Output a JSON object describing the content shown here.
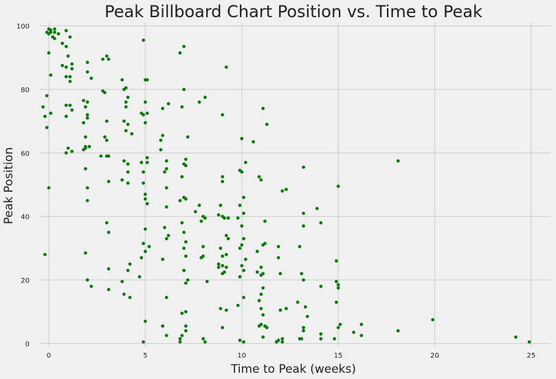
{
  "chart_data": {
    "type": "scatter",
    "title": "Peak Billboard Chart Position vs. Time to Peak",
    "xlabel": "Time to Peak (weeks)",
    "ylabel": "Peak Position",
    "xlim": [
      -0.5,
      26
    ],
    "ylim": [
      -1,
      101
    ],
    "xticks": [
      0,
      5,
      10,
      15,
      20,
      25
    ],
    "yticks": [
      0,
      20,
      40,
      60,
      80,
      100
    ],
    "xtick_labels": [
      "0",
      "5",
      "10",
      "15",
      "20",
      "25"
    ],
    "ytick_labels": [
      "0",
      "20",
      "40",
      "60",
      "80",
      "100"
    ],
    "grid": true,
    "point_color": "#0a7a0a",
    "points": [
      [
        0,
        99
      ],
      [
        0.1,
        98
      ],
      [
        -0.1,
        98
      ],
      [
        0,
        97.5
      ],
      [
        0.3,
        99
      ],
      [
        0.2,
        96.5
      ],
      [
        0.3,
        98
      ],
      [
        0.5,
        97.5
      ],
      [
        0.1,
        98.7
      ],
      [
        0.9,
        98.5
      ],
      [
        1.1,
        96.5
      ],
      [
        0.7,
        94.5
      ],
      [
        0.9,
        93.5
      ],
      [
        0,
        91.5
      ],
      [
        1.0,
        90.5
      ],
      [
        0.3,
        96
      ],
      [
        0.7,
        87.5
      ],
      [
        1.2,
        88
      ],
      [
        1.2,
        86.5
      ],
      [
        0.9,
        87
      ],
      [
        0.1,
        84.5
      ],
      [
        0.9,
        84
      ],
      [
        1.1,
        84
      ],
      [
        1.1,
        82.5
      ],
      [
        -0.1,
        78
      ],
      [
        -0.3,
        74.5
      ],
      [
        -0.2,
        71.5
      ],
      [
        0.1,
        72.5
      ],
      [
        -0.1,
        68
      ],
      [
        0,
        49
      ],
      [
        -0.2,
        28
      ],
      [
        0.9,
        75
      ],
      [
        1.1,
        75
      ],
      [
        1.2,
        73.5
      ],
      [
        0.9,
        71.5
      ],
      [
        0.9,
        60
      ],
      [
        1.0,
        61.5
      ],
      [
        1.2,
        60.5
      ],
      [
        1.8,
        76.5
      ],
      [
        2.0,
        76
      ],
      [
        1.9,
        74.5
      ],
      [
        2.0,
        72
      ],
      [
        2.0,
        71
      ],
      [
        1.8,
        69.5
      ],
      [
        1.9,
        65
      ],
      [
        1.9,
        61.5
      ],
      [
        1.8,
        61
      ],
      [
        1.9,
        62
      ],
      [
        2.1,
        62
      ],
      [
        1.9,
        55
      ],
      [
        2.0,
        49
      ],
      [
        2.0,
        45
      ],
      [
        1.9,
        28.5
      ],
      [
        2.0,
        20
      ],
      [
        2.2,
        18
      ],
      [
        2.0,
        88.5
      ],
      [
        2.0,
        85.5
      ],
      [
        2.2,
        83.5
      ],
      [
        2.8,
        79.5
      ],
      [
        2.9,
        79
      ],
      [
        2.8,
        89.5
      ],
      [
        3.0,
        90.5
      ],
      [
        3.1,
        89.5
      ],
      [
        3.0,
        70
      ],
      [
        2.9,
        65
      ],
      [
        3.0,
        64
      ],
      [
        2.7,
        59
      ],
      [
        3.0,
        59
      ],
      [
        3.1,
        59
      ],
      [
        3.1,
        51
      ],
      [
        3.0,
        38
      ],
      [
        3.1,
        35
      ],
      [
        3.1,
        23.5
      ],
      [
        3.1,
        17
      ],
      [
        3.8,
        83
      ],
      [
        3.9,
        80
      ],
      [
        4.0,
        80.5
      ],
      [
        4.1,
        77.5
      ],
      [
        4.0,
        76
      ],
      [
        4.0,
        74.5
      ],
      [
        3.9,
        70
      ],
      [
        4.1,
        69
      ],
      [
        4.0,
        67
      ],
      [
        4.3,
        66
      ],
      [
        3.9,
        57.5
      ],
      [
        4.1,
        56.5
      ],
      [
        4.1,
        54
      ],
      [
        3.8,
        51.5
      ],
      [
        4.1,
        50.5
      ],
      [
        4.2,
        25
      ],
      [
        4.1,
        23
      ],
      [
        3.8,
        19.5
      ],
      [
        3.9,
        15.5
      ],
      [
        4.2,
        14.5
      ],
      [
        4.9,
        95.5
      ],
      [
        5.0,
        83
      ],
      [
        5.1,
        83
      ],
      [
        4.8,
        72.5
      ],
      [
        4.9,
        72
      ],
      [
        5.1,
        72.5
      ],
      [
        5.0,
        76
      ],
      [
        5.0,
        69.5
      ],
      [
        4.8,
        57
      ],
      [
        5.1,
        57
      ],
      [
        5.1,
        58.5
      ],
      [
        4.9,
        54
      ],
      [
        4.9,
        50.5
      ],
      [
        5.0,
        47
      ],
      [
        5.0,
        45.5
      ],
      [
        5.1,
        44
      ],
      [
        5.0,
        36
      ],
      [
        4.9,
        31.5
      ],
      [
        5.2,
        30.5
      ],
      [
        5.0,
        29
      ],
      [
        4.8,
        27
      ],
      [
        4.7,
        21
      ],
      [
        5.0,
        7
      ],
      [
        4.9,
        0.5
      ],
      [
        5.9,
        74
      ],
      [
        6.2,
        75.5
      ],
      [
        5.8,
        64
      ],
      [
        5.9,
        65.5
      ],
      [
        5.8,
        61
      ],
      [
        6.1,
        57.5
      ],
      [
        6.0,
        54
      ],
      [
        6.1,
        55
      ],
      [
        6.1,
        49
      ],
      [
        6.1,
        43
      ],
      [
        6.0,
        36.5
      ],
      [
        6.2,
        34
      ],
      [
        6.1,
        33
      ],
      [
        5.9,
        26.5
      ],
      [
        6.1,
        14.5
      ],
      [
        5.9,
        5.5
      ],
      [
        6.1,
        2.5
      ],
      [
        6.8,
        91.5
      ],
      [
        7.0,
        93.5
      ],
      [
        6.9,
        74.5
      ],
      [
        7.0,
        80
      ],
      [
        7.2,
        65
      ],
      [
        7.1,
        58
      ],
      [
        7.0,
        56.5
      ],
      [
        7.1,
        56
      ],
      [
        6.9,
        52.5
      ],
      [
        7.0,
        46
      ],
      [
        6.8,
        45
      ],
      [
        7.1,
        45.5
      ],
      [
        6.9,
        38
      ],
      [
        7.0,
        35
      ],
      [
        7.1,
        32
      ],
      [
        7.0,
        30
      ],
      [
        7.1,
        27.5
      ],
      [
        7.0,
        23
      ],
      [
        7.2,
        20
      ],
      [
        7.1,
        19
      ],
      [
        7.1,
        10
      ],
      [
        6.9,
        9.5
      ],
      [
        7.1,
        5.5
      ],
      [
        7.1,
        4
      ],
      [
        6.9,
        2.5
      ],
      [
        6.8,
        1.5
      ],
      [
        6.8,
        0.5
      ],
      [
        7.8,
        76
      ],
      [
        8.1,
        77.5
      ],
      [
        7.6,
        41.5
      ],
      [
        7.8,
        43.5
      ],
      [
        8.0,
        40
      ],
      [
        8.1,
        39.5
      ],
      [
        7.9,
        38.5
      ],
      [
        8.0,
        30.5
      ],
      [
        7.9,
        27
      ],
      [
        8.0,
        27.5
      ],
      [
        8.2,
        19.5
      ],
      [
        8.0,
        1.5
      ],
      [
        8.1,
        0.5
      ],
      [
        9.2,
        87
      ],
      [
        9.0,
        72
      ],
      [
        9.0,
        52.5
      ],
      [
        9.0,
        51
      ],
      [
        8.8,
        40.5
      ],
      [
        9.0,
        40
      ],
      [
        8.9,
        43.5
      ],
      [
        9.1,
        39.5
      ],
      [
        9.3,
        39.5
      ],
      [
        9.2,
        34
      ],
      [
        9.3,
        33
      ],
      [
        8.9,
        30
      ],
      [
        9.0,
        27.5
      ],
      [
        9.2,
        28
      ],
      [
        8.8,
        25
      ],
      [
        9.0,
        24.5
      ],
      [
        9.2,
        24
      ],
      [
        8.8,
        24
      ],
      [
        9.1,
        22.5
      ],
      [
        9.0,
        22
      ],
      [
        8.9,
        11
      ],
      [
        9.2,
        10.5
      ],
      [
        9.0,
        5
      ],
      [
        10.0,
        64.5
      ],
      [
        10.2,
        57
      ],
      [
        9.9,
        54.5
      ],
      [
        10.0,
        54
      ],
      [
        10.1,
        46
      ],
      [
        10.1,
        41
      ],
      [
        9.9,
        43.5
      ],
      [
        9.8,
        39.5
      ],
      [
        10.0,
        37
      ],
      [
        10.1,
        33
      ],
      [
        10.0,
        31
      ],
      [
        9.9,
        30
      ],
      [
        10.2,
        26.5
      ],
      [
        10.0,
        24.5
      ],
      [
        10.1,
        23
      ],
      [
        9.9,
        21
      ],
      [
        10.1,
        14.5
      ],
      [
        9.8,
        12
      ],
      [
        9.9,
        1
      ],
      [
        10.1,
        0.5
      ],
      [
        10.6,
        63.5
      ],
      [
        11.1,
        74
      ],
      [
        11.3,
        69
      ],
      [
        10.9,
        52.5
      ],
      [
        11.0,
        51.5
      ],
      [
        11.2,
        38.5
      ],
      [
        11.1,
        31
      ],
      [
        11.2,
        31.5
      ],
      [
        10.8,
        29
      ],
      [
        11.0,
        24
      ],
      [
        10.8,
        22.5
      ],
      [
        11.0,
        21.5
      ],
      [
        11.1,
        22
      ],
      [
        11.1,
        17.5
      ],
      [
        11.0,
        15.5
      ],
      [
        10.9,
        13.5
      ],
      [
        11.0,
        11
      ],
      [
        11.1,
        9
      ],
      [
        10.9,
        5.5
      ],
      [
        11.0,
        6
      ],
      [
        11.2,
        5.5
      ],
      [
        11.3,
        5
      ],
      [
        11.1,
        2
      ],
      [
        12.1,
        48
      ],
      [
        12.3,
        48.5
      ],
      [
        11.9,
        30.5
      ],
      [
        11.9,
        27
      ],
      [
        12.0,
        22
      ],
      [
        12.3,
        11
      ],
      [
        12.0,
        10.5
      ],
      [
        11.9,
        1
      ],
      [
        12.1,
        0.5
      ],
      [
        12.1,
        1.5
      ],
      [
        11.8,
        0.5
      ],
      [
        13.2,
        55.5
      ],
      [
        13.2,
        41
      ],
      [
        13.2,
        37
      ],
      [
        13.0,
        30.5
      ],
      [
        13.1,
        22
      ],
      [
        13.2,
        20
      ],
      [
        12.9,
        13
      ],
      [
        13.3,
        11.5
      ],
      [
        13.4,
        8.5
      ],
      [
        13.2,
        5
      ],
      [
        13.2,
        4
      ],
      [
        13.0,
        1.5
      ],
      [
        13.1,
        1.5
      ],
      [
        13.9,
        42.5
      ],
      [
        14.1,
        38
      ],
      [
        14.1,
        18
      ],
      [
        14.1,
        3
      ],
      [
        14.1,
        1.5
      ],
      [
        15.0,
        49.5
      ],
      [
        14.9,
        26
      ],
      [
        14.9,
        19.5
      ],
      [
        15.0,
        18.5
      ],
      [
        15.0,
        17.5
      ],
      [
        14.9,
        13
      ],
      [
        15.1,
        6
      ],
      [
        15.0,
        5
      ],
      [
        14.8,
        1.5
      ],
      [
        15.8,
        3.5
      ],
      [
        16.2,
        6
      ],
      [
        16.2,
        2.5
      ],
      [
        18.1,
        57.5
      ],
      [
        18.1,
        4
      ],
      [
        19.9,
        7.5
      ],
      [
        24.2,
        2
      ],
      [
        24.9,
        0.5
      ]
    ]
  }
}
